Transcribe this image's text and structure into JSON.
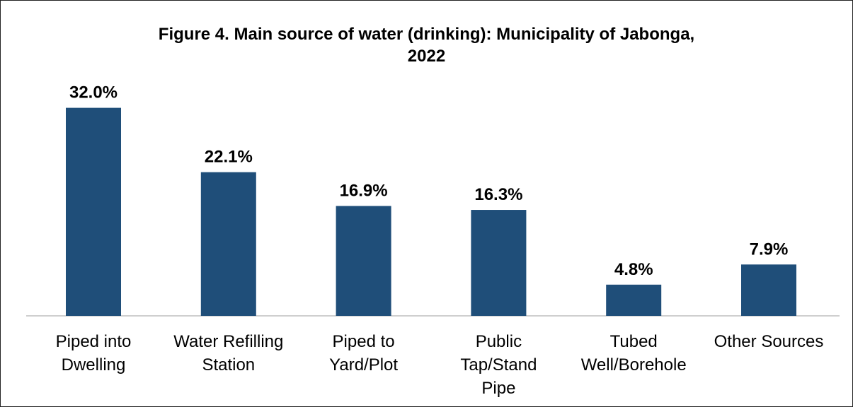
{
  "chart_data": {
    "type": "bar",
    "title_line1": "Figure 4. Main source of water (drinking): Municipality of Jabonga,",
    "title_line2": "2022",
    "categories": [
      [
        "Piped into",
        "Dwelling"
      ],
      [
        "Water Refilling",
        "Station"
      ],
      [
        "Piped to",
        "Yard/Plot"
      ],
      [
        "Public",
        "Tap/Stand",
        "Pipe"
      ],
      [
        "Tubed",
        "Well/Borehole"
      ],
      [
        "Other Sources"
      ]
    ],
    "values": [
      32.0,
      22.1,
      16.9,
      16.3,
      4.8,
      7.9
    ],
    "value_labels": [
      "32.0%",
      "22.1%",
      "16.9%",
      "16.3%",
      "4.8%",
      "7.9%"
    ],
    "bar_color": "#1F4E79",
    "axis_color": "#BFBFBF",
    "grid": false,
    "legend": "none"
  }
}
